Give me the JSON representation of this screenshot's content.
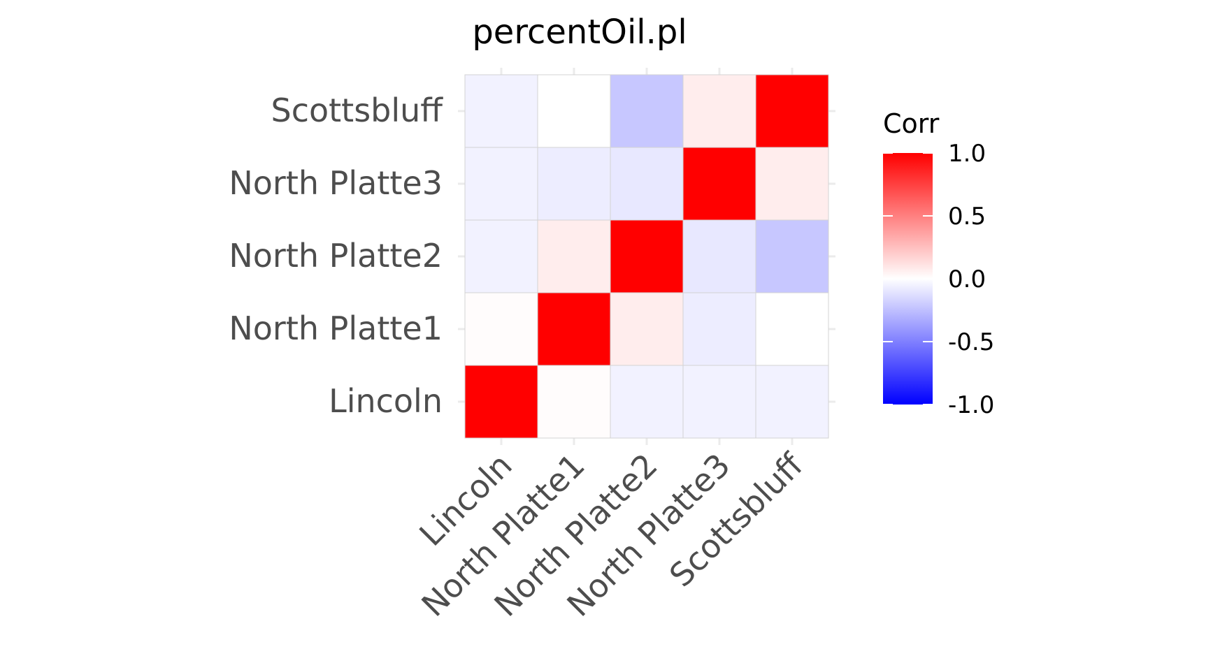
{
  "chart_data": {
    "type": "heatmap",
    "title": "percentOil.pl",
    "xlabel": "",
    "ylabel": "",
    "x_categories": [
      "Lincoln",
      "North Platte1",
      "North Platte2",
      "North Platte3",
      "Scottsbluff"
    ],
    "y_categories": [
      "Lincoln",
      "North Platte1",
      "North Platte2",
      "North Platte3",
      "Scottsbluff"
    ],
    "matrix": [
      [
        1.0,
        0.01,
        -0.05,
        -0.05,
        -0.05
      ],
      [
        0.01,
        1.0,
        0.07,
        -0.07,
        0.0
      ],
      [
        -0.05,
        0.07,
        1.0,
        -0.09,
        -0.22
      ],
      [
        -0.05,
        -0.07,
        -0.09,
        1.0,
        0.07
      ],
      [
        -0.05,
        0.0,
        -0.22,
        0.07,
        1.0
      ]
    ],
    "legend": {
      "title": "Corr",
      "ticks": [
        "1.0",
        "0.5",
        "0.0",
        "-0.5",
        "-1.0"
      ],
      "tick_values": [
        1.0,
        0.5,
        0.0,
        -0.5,
        -1.0
      ],
      "range": [
        -1,
        1
      ],
      "colors": {
        "low": "#0000ff",
        "mid": "#ffffff",
        "high": "#ff0000"
      },
      "placement": "right"
    },
    "grid": true,
    "x_tick_rotation": 45
  }
}
